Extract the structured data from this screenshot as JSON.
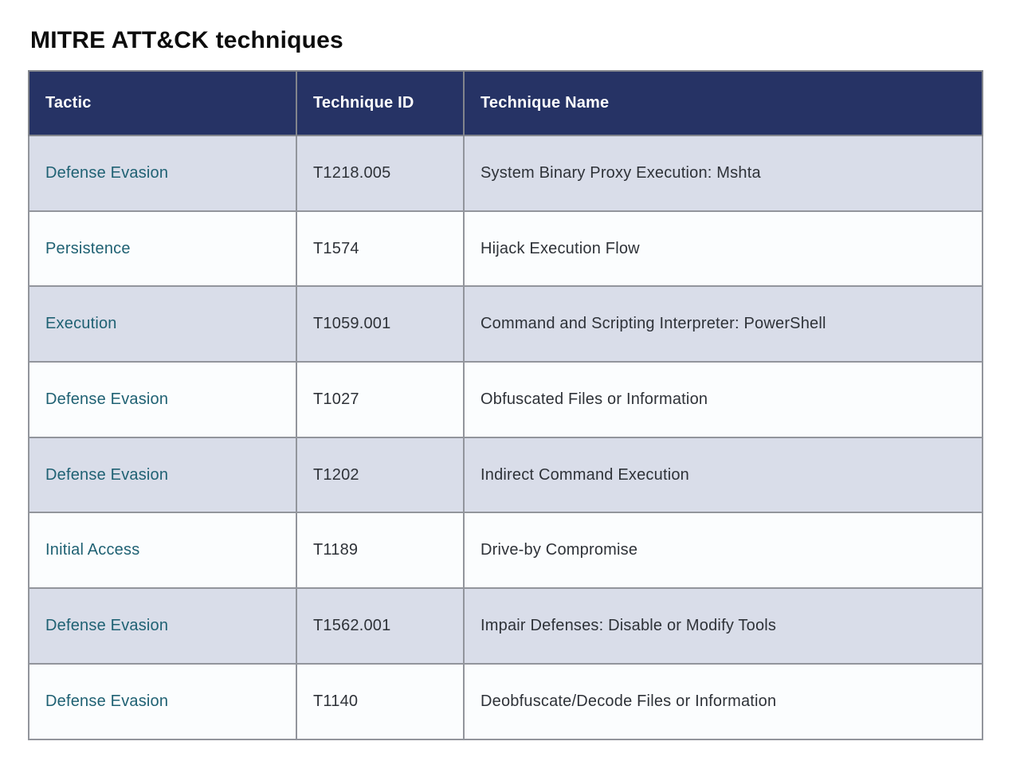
{
  "page": {
    "title": "MITRE ATT&CK techniques"
  },
  "table": {
    "columns": [
      "Tactic",
      "Technique ID",
      "Technique Name"
    ],
    "rows": [
      {
        "tactic": "Defense Evasion",
        "technique_id": "T1218.005",
        "technique_name": "System Binary Proxy Execution: Mshta"
      },
      {
        "tactic": "Persistence",
        "technique_id": "T1574",
        "technique_name": "Hijack Execution Flow"
      },
      {
        "tactic": "Execution",
        "technique_id": "T1059.001",
        "technique_name": "Command and Scripting Interpreter: PowerShell"
      },
      {
        "tactic": "Defense Evasion",
        "technique_id": "T1027",
        "technique_name": "Obfuscated Files or Information"
      },
      {
        "tactic": "Defense Evasion",
        "technique_id": "T1202",
        "technique_name": "Indirect Command Execution"
      },
      {
        "tactic": "Initial Access",
        "technique_id": "T1189",
        "technique_name": "Drive-by Compromise"
      },
      {
        "tactic": "Defense Evasion",
        "technique_id": "T1562.001",
        "technique_name": "Impair Defenses: Disable or Modify Tools"
      },
      {
        "tactic": "Defense Evasion",
        "technique_id": "T1140",
        "technique_name": "Deobfuscate/Decode Files or Information"
      }
    ]
  },
  "colors": {
    "header_bg": "#263365",
    "header_fg": "#ffffff",
    "row_alt_bg": "#d9dde9",
    "row_bg": "#fbfdfe",
    "link_color": "#1f6173",
    "grid_border": "#92959c"
  }
}
